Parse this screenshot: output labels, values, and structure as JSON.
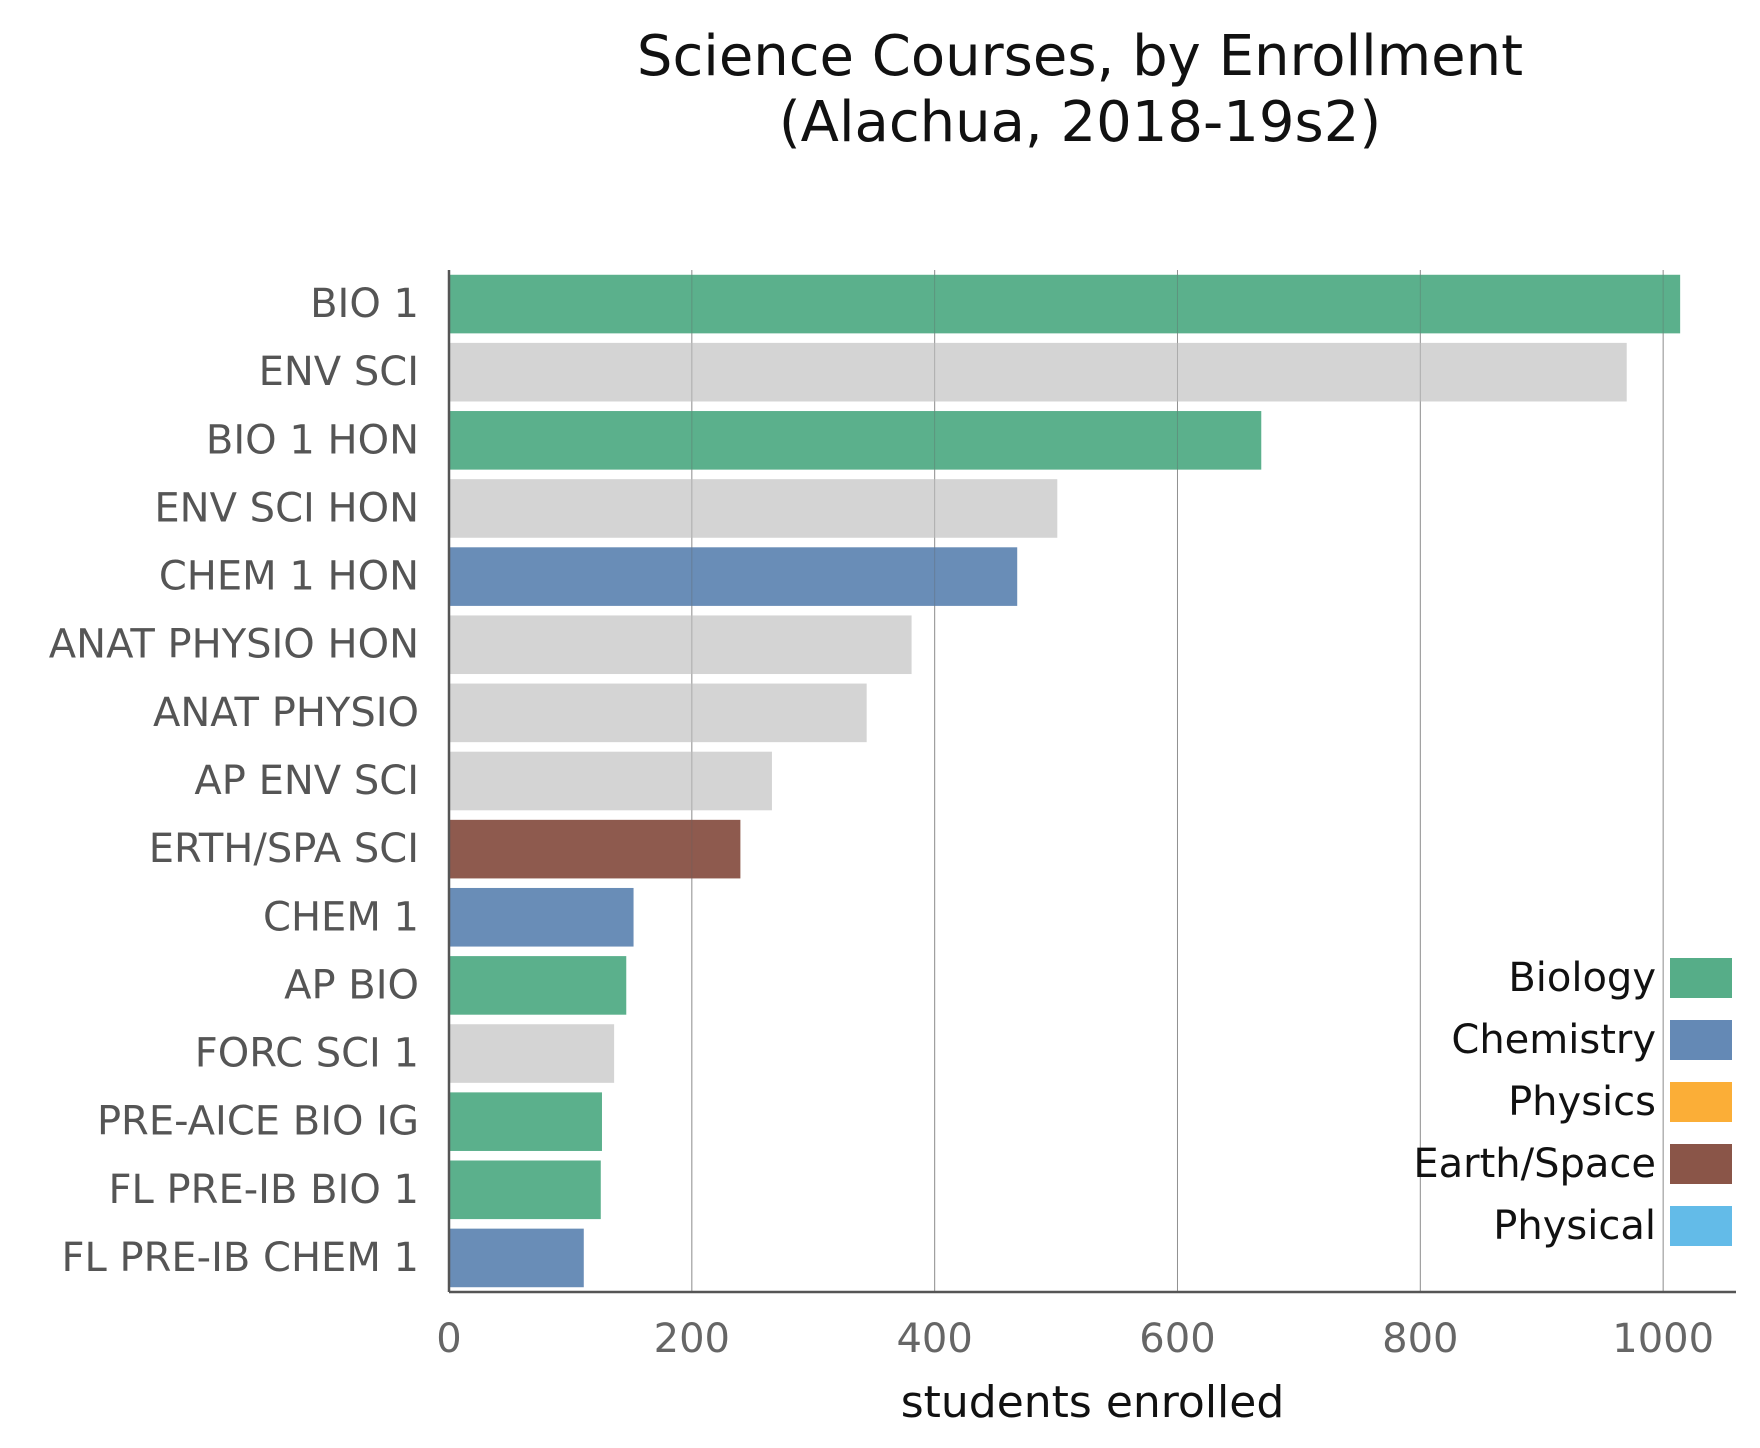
{
  "chart_data": {
    "type": "bar",
    "orientation": "horizontal",
    "title_lines": [
      "Science Courses, by Enrollment",
      "(Alachua, 2018-19s2)"
    ],
    "xlabel": "students enrolled",
    "ylabel": "",
    "xlim": [
      0,
      1060
    ],
    "xticks": [
      0,
      200,
      400,
      600,
      800,
      1000
    ],
    "grid": "vertical",
    "legend_position": "bottom-right",
    "categories": [
      "BIO 1",
      "ENV SCI",
      "BIO 1 HON",
      "ENV SCI HON",
      "CHEM 1 HON",
      "ANAT PHYSIO HON",
      "ANAT PHYSIO",
      "AP ENV SCI",
      "ERTH/SPA SCI",
      "CHEM 1",
      "AP BIO",
      "FORC SCI 1",
      "PRE-AICE BIO IG",
      "FL PRE-IB BIO 1",
      "FL PRE-IB CHEM 1"
    ],
    "values": [
      1014,
      970,
      669,
      501,
      468,
      381,
      344,
      266,
      240,
      152,
      146,
      136,
      126,
      125,
      111
    ],
    "bar_groups": [
      "Biology",
      "Other",
      "Biology",
      "Other",
      "Chemistry",
      "Other",
      "Other",
      "Other",
      "Earth/Space",
      "Chemistry",
      "Biology",
      "Other",
      "Biology",
      "Biology",
      "Chemistry"
    ],
    "colors": {
      "Biology": "#56ad88",
      "Chemistry": "#6489b5",
      "Physics": "#fbae37",
      "Earth/Space": "#8a5548",
      "Physical": "#63bbe8",
      "Other": "#d3d3d3"
    },
    "legend": [
      "Biology",
      "Chemistry",
      "Physics",
      "Earth/Space",
      "Physical"
    ]
  }
}
